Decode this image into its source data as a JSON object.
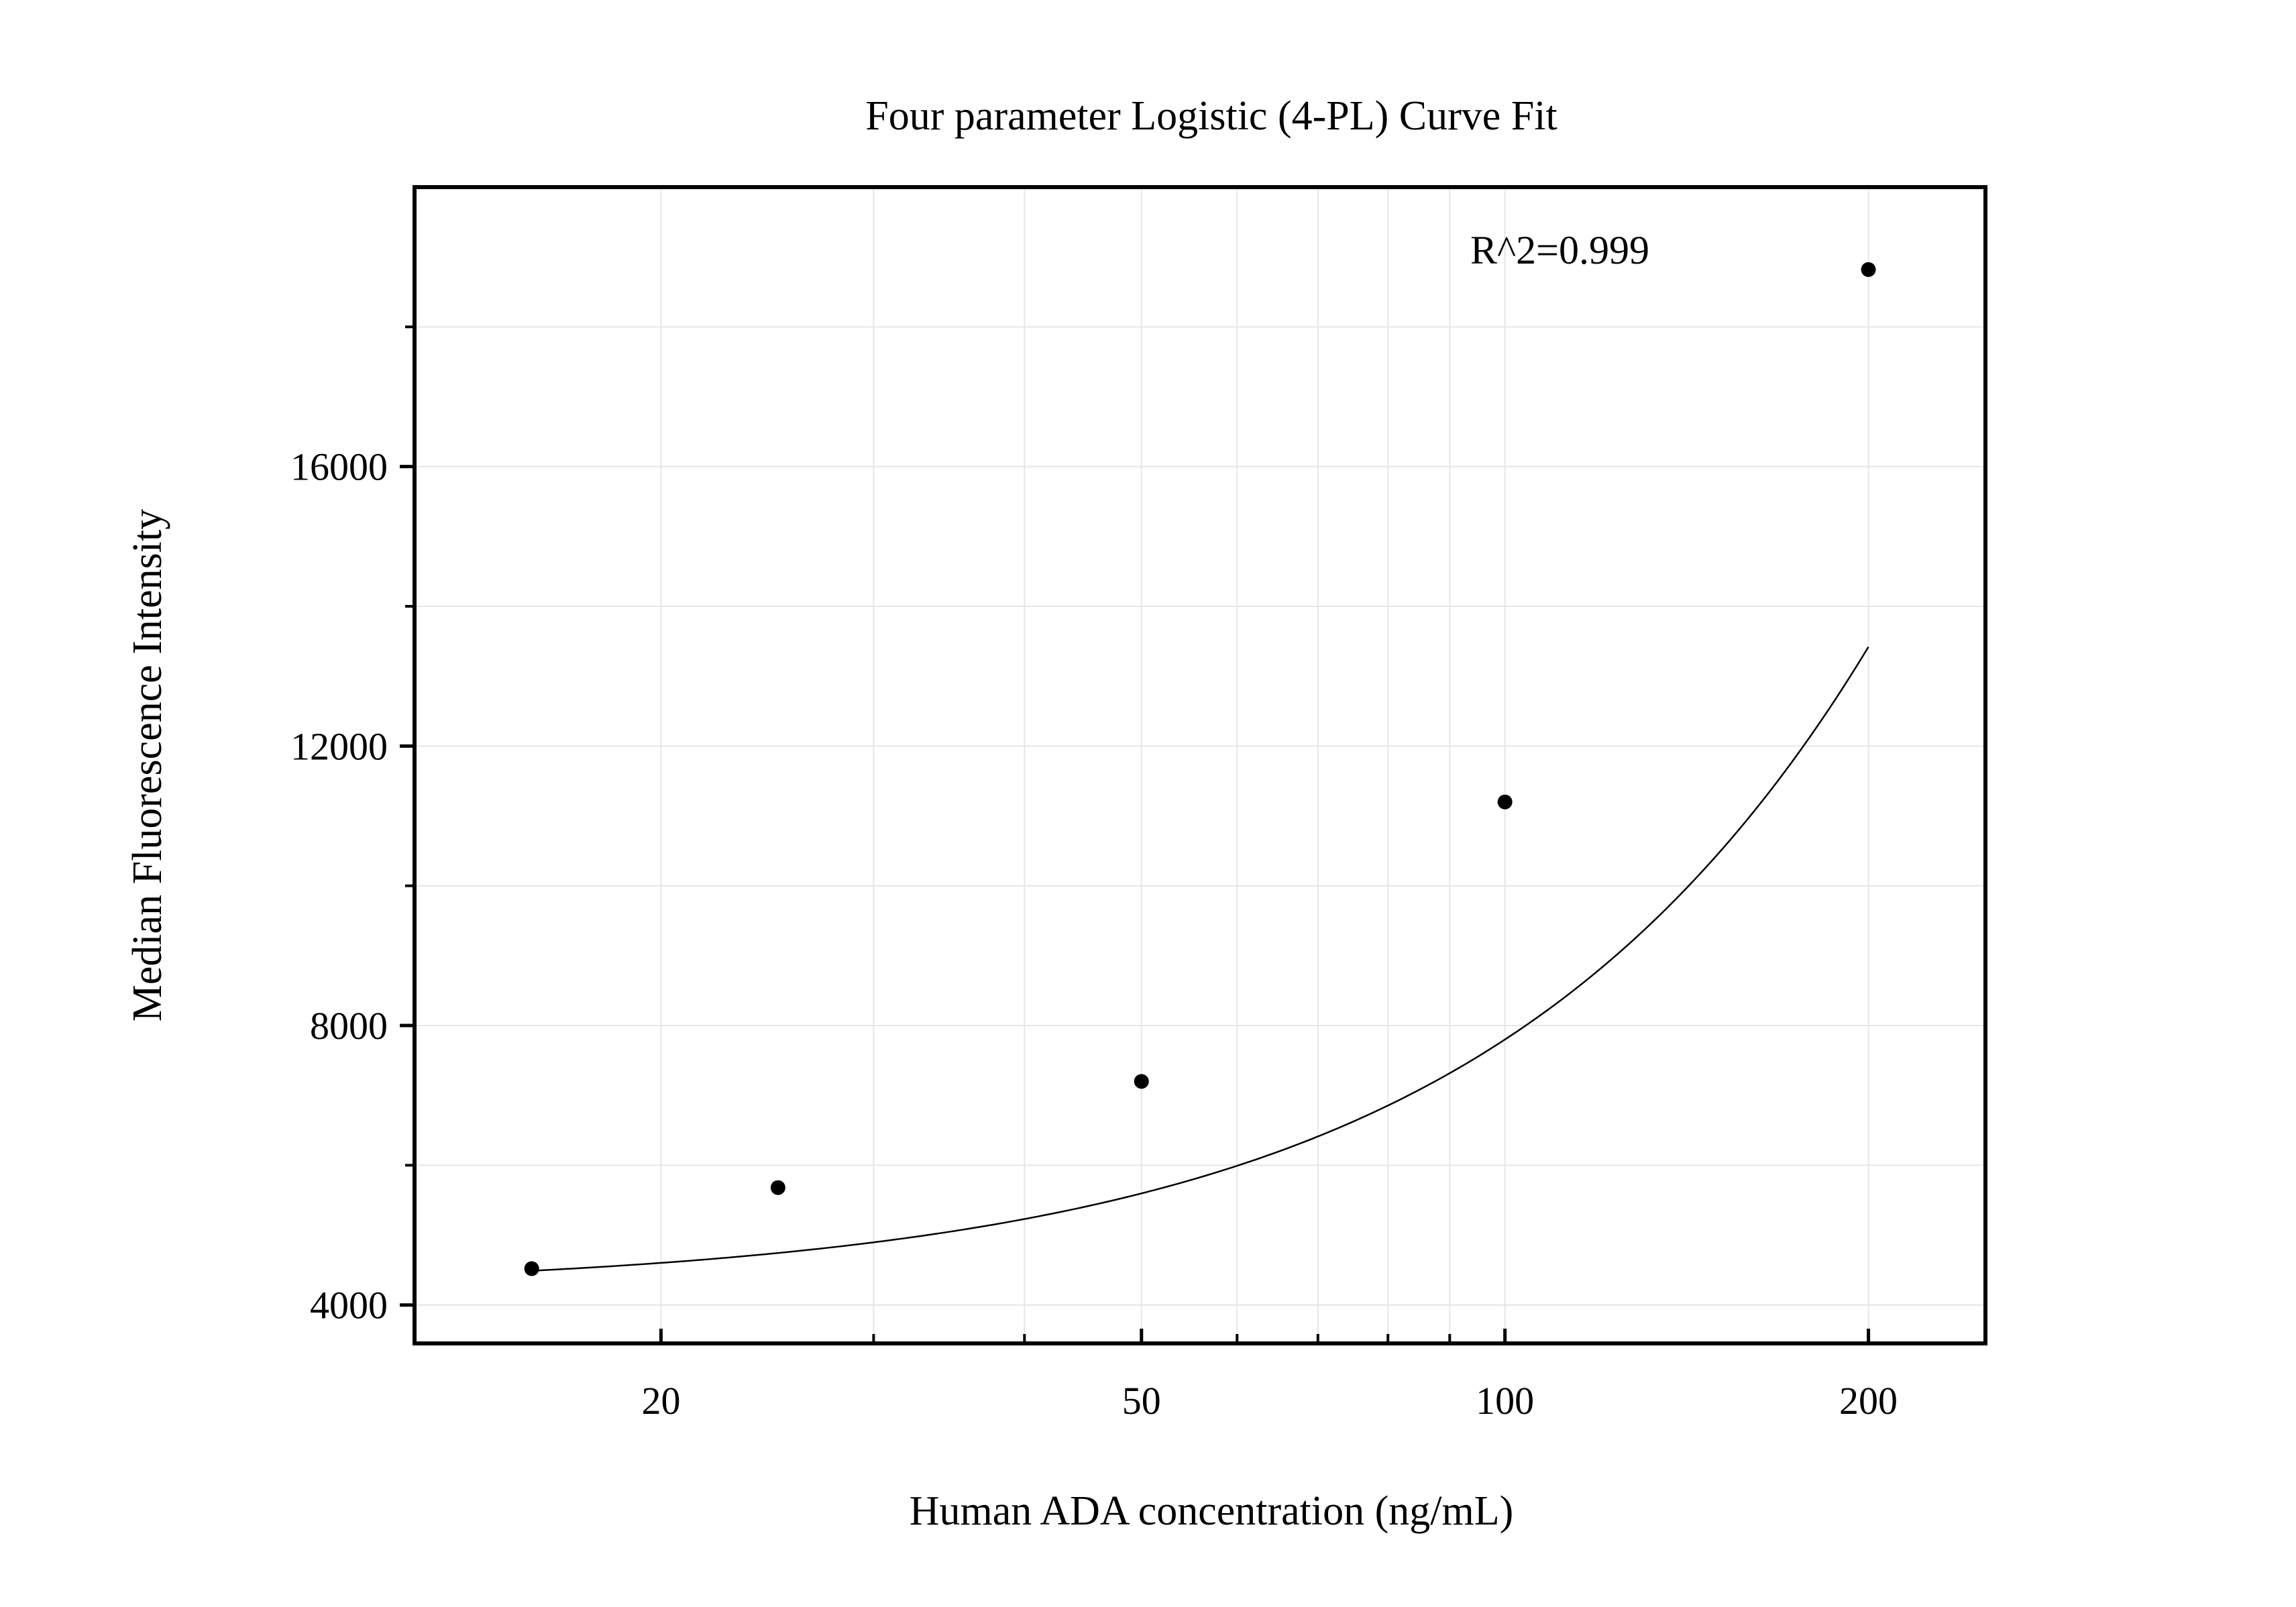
{
  "chart_data": {
    "type": "scatter",
    "title": "Four parameter Logistic (4-PL) Curve Fit",
    "xlabel": "Human ADA concentration (ng/mL)",
    "ylabel": "Median Fluorescence Intensity",
    "x_scale": "log",
    "xlim": [
      12.5,
      250
    ],
    "ylim": [
      3450,
      20000
    ],
    "x_ticks": [
      20,
      50,
      100,
      200
    ],
    "x_tick_labels": [
      "20",
      "50",
      "100",
      "200"
    ],
    "y_ticks": [
      4000,
      8000,
      12000,
      16000
    ],
    "y_tick_labels": [
      "4000",
      "8000",
      "12000",
      "16000"
    ],
    "grid": true,
    "annotation": "R^2=0.999",
    "series": [
      {
        "points": [
          {
            "x": 15.63,
            "y": 4520
          },
          {
            "x": 25,
            "y": 5680
          },
          {
            "x": 50,
            "y": 7200
          },
          {
            "x": 100,
            "y": 11200
          },
          {
            "x": 200,
            "y": 18820
          }
        ]
      }
    ],
    "fit_curve": {
      "model": "4PL",
      "x_range": [
        15.63,
        200
      ],
      "params": {
        "A": 4210,
        "B": 1.38,
        "C": 3000,
        "D": 400000
      }
    },
    "colors": {
      "points": "#000000",
      "curve": "#000000",
      "grid": "#e6e6e6",
      "frame": "#000000"
    }
  }
}
